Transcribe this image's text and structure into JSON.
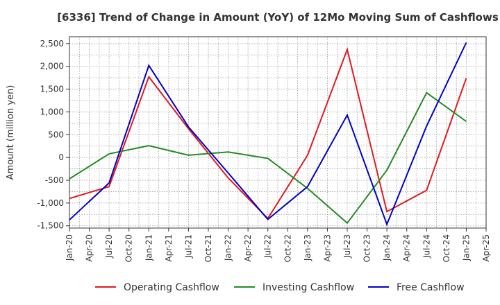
{
  "chart_data": {
    "type": "line",
    "title": "[6336]  Trend of Change in Amount (YoY) of 12Mo Moving Sum of Cashflows",
    "xlabel": "",
    "ylabel": "Amount (million yen)",
    "ylim": [
      -1550,
      2650
    ],
    "yticks": [
      -1500,
      -1000,
      -500,
      0,
      500,
      1000,
      1500,
      2000,
      2500
    ],
    "ytick_labels": [
      "-1,500",
      "-1,000",
      "-500",
      "0",
      "500",
      "1,000",
      "1,500",
      "2,000",
      "2,500"
    ],
    "x_categories": [
      "Jan-20",
      "Apr-20",
      "Jul-20",
      "Oct-20",
      "Jan-21",
      "Apr-21",
      "Jul-21",
      "Oct-21",
      "Jan-22",
      "Apr-22",
      "Jul-22",
      "Oct-22",
      "Jan-23",
      "Apr-23",
      "Jul-23",
      "Oct-23",
      "Jan-24",
      "Apr-24",
      "Jul-24",
      "Oct-24",
      "Jan-25",
      "Apr-25"
    ],
    "grid": true,
    "legend_position": "bottom",
    "series": [
      {
        "name": "Operating Cashflow",
        "color": "#e31a1c",
        "x_index": [
          0,
          2,
          4,
          6,
          8,
          10,
          12,
          14,
          16,
          18,
          20
        ],
        "values": [
          -900,
          -640,
          1770,
          630,
          -450,
          -1340,
          50,
          2370,
          -1190,
          -720,
          1740
        ]
      },
      {
        "name": "Investing Cashflow",
        "color": "#228b22",
        "x_index": [
          0,
          2,
          4,
          6,
          8,
          10,
          12,
          14,
          16,
          18,
          20
        ],
        "values": [
          -470,
          80,
          260,
          50,
          120,
          -20,
          -680,
          -1440,
          -280,
          1420,
          790
        ]
      },
      {
        "name": "Free Cashflow",
        "color": "#0000cc",
        "x_index": [
          0,
          2,
          4,
          6,
          8,
          10,
          12,
          14,
          16,
          18,
          20
        ],
        "values": [
          -1370,
          -560,
          2020,
          670,
          -340,
          -1360,
          -640,
          930,
          -1470,
          690,
          2520
        ]
      }
    ]
  }
}
